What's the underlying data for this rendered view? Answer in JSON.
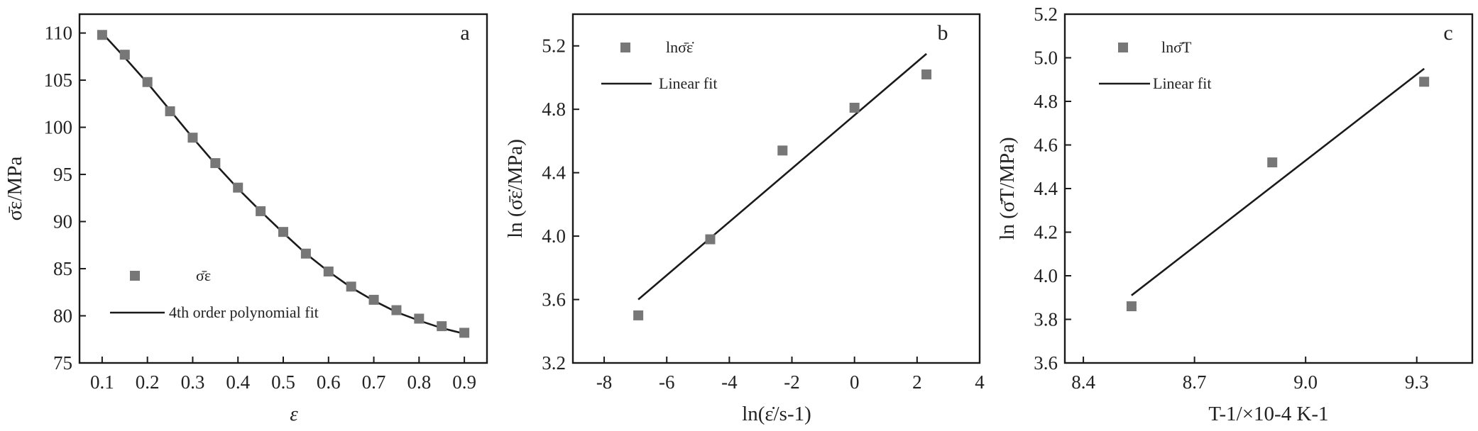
{
  "colors": {
    "marker": "#777777",
    "line": "#1a1a1a"
  },
  "chart_data": [
    {
      "panel": "a",
      "type": "scatter",
      "xlabel": "ε",
      "ylabel": "σ̄ε/MPa",
      "xlim": [
        0.05,
        0.95
      ],
      "ylim": [
        75,
        112
      ],
      "xticks": [
        0.1,
        0.2,
        0.3,
        0.4,
        0.5,
        0.6,
        0.7,
        0.8,
        0.9
      ],
      "xtick_labels": [
        "0.1",
        "0.2",
        "0.3",
        "0.4",
        "0.5",
        "0.6",
        "0.7",
        "0.8",
        "0.9"
      ],
      "yticks": [
        75,
        80,
        85,
        90,
        95,
        100,
        105,
        110
      ],
      "ytick_labels": [
        "75",
        "80",
        "85",
        "90",
        "95",
        "100",
        "105",
        "110"
      ],
      "legend": {
        "placement": "bottom-left",
        "marker_label": "σ̄ε",
        "line_label": "4th order polynomial fit"
      },
      "series": [
        {
          "kind": "points",
          "x": [
            0.1,
            0.15,
            0.2,
            0.25,
            0.3,
            0.35,
            0.4,
            0.45,
            0.5,
            0.55,
            0.6,
            0.65,
            0.7,
            0.75,
            0.8,
            0.85,
            0.9
          ],
          "y": [
            109.8,
            107.7,
            104.8,
            101.7,
            98.9,
            96.2,
            93.6,
            91.1,
            88.9,
            86.6,
            84.7,
            83.1,
            81.7,
            80.6,
            79.7,
            78.9,
            78.2
          ]
        },
        {
          "kind": "curve",
          "x": [
            0.1,
            0.15,
            0.2,
            0.25,
            0.3,
            0.35,
            0.4,
            0.45,
            0.5,
            0.55,
            0.6,
            0.65,
            0.7,
            0.75,
            0.8,
            0.85,
            0.9
          ],
          "y": [
            110.0,
            107.4,
            104.7,
            101.8,
            98.9,
            96.1,
            93.5,
            91.1,
            88.8,
            86.6,
            84.7,
            83.0,
            81.6,
            80.4,
            79.5,
            78.7,
            78.1
          ]
        }
      ]
    },
    {
      "panel": "b",
      "type": "scatter",
      "xlabel": "ln(ε̇/s-1)",
      "ylabel": "ln (σ̄ε̇/MPa)",
      "xlim": [
        -9,
        4
      ],
      "ylim": [
        3.2,
        5.4
      ],
      "xticks": [
        -8,
        -6,
        -4,
        -2,
        0,
        2,
        4
      ],
      "xtick_labels": [
        "-8",
        "-6",
        "-4",
        "-2",
        "0",
        "2",
        "4"
      ],
      "yticks": [
        3.2,
        3.6,
        4.0,
        4.4,
        4.8,
        5.2
      ],
      "ytick_labels": [
        "3.2",
        "3.6",
        "4.0",
        "4.4",
        "4.8",
        "5.2"
      ],
      "legend": {
        "placement": "top-left",
        "marker_label": "lnσ̄ε̇",
        "line_label": "Linear fit"
      },
      "series": [
        {
          "kind": "points",
          "x": [
            -6.91,
            -4.61,
            -2.3,
            0.0,
            2.3
          ],
          "y": [
            3.5,
            3.98,
            4.54,
            4.81,
            5.02
          ]
        },
        {
          "kind": "line",
          "x": [
            -6.91,
            2.3
          ],
          "y": [
            3.6,
            5.15
          ]
        }
      ]
    },
    {
      "panel": "c",
      "type": "scatter",
      "xlabel": "T-1/×10-4 K-1",
      "ylabel": "ln (σ̄T/MPa)",
      "xlim": [
        8.35,
        9.45
      ],
      "ylim": [
        3.6,
        5.2
      ],
      "xticks": [
        8.4,
        8.7,
        9.0,
        9.3
      ],
      "xtick_labels": [
        "8.4",
        "8.7",
        "9.0",
        "9.3"
      ],
      "yticks": [
        3.6,
        3.8,
        4.0,
        4.2,
        4.4,
        4.6,
        4.8,
        5.0,
        5.2
      ],
      "ytick_labels": [
        "3.6",
        "3.8",
        "4.0",
        "4.2",
        "4.4",
        "4.6",
        "4.8",
        "5.0",
        "5.2"
      ],
      "legend": {
        "placement": "top-left",
        "marker_label": "lnσ̄T",
        "line_label": "Linear fit"
      },
      "series": [
        {
          "kind": "points",
          "x": [
            8.53,
            8.91,
            9.32
          ],
          "y": [
            3.86,
            4.52,
            4.89
          ]
        },
        {
          "kind": "line",
          "x": [
            8.53,
            9.32
          ],
          "y": [
            3.91,
            4.95
          ]
        }
      ]
    }
  ]
}
